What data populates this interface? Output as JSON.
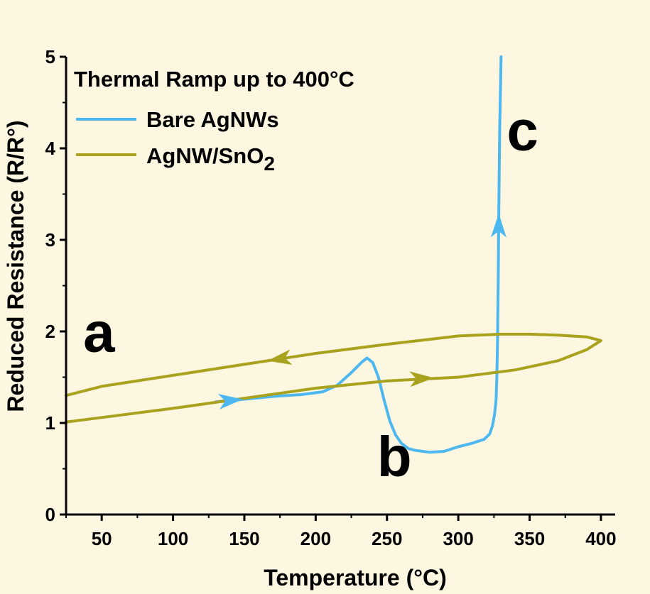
{
  "chart_data": {
    "type": "line",
    "title": "",
    "xlabel": "Temperature (°C)",
    "ylabel": "Reduced Resistance (R/R°)",
    "xlim": [
      25,
      410
    ],
    "ylim": [
      0,
      5
    ],
    "xticks": [
      "50",
      "100",
      "150",
      "200",
      "250",
      "300",
      "350",
      "400"
    ],
    "yticks": [
      "0",
      "1",
      "2",
      "3",
      "4",
      "5"
    ],
    "grid": false,
    "legend": {
      "placement": "top-left",
      "title": "Thermal Ramp up to 400°C"
    },
    "annotations": [
      {
        "text": "a",
        "x": 37,
        "y": 1.78
      },
      {
        "text": "b",
        "x": 243,
        "y": 0.42
      },
      {
        "text": "c",
        "x": 334,
        "y": 3.98
      }
    ],
    "series": [
      {
        "name": "Bare AgNWs",
        "name_main": "Bare AgNWs",
        "name_sub": "",
        "color": "#4db8f0",
        "x": [
          130,
          150,
          170,
          190,
          205,
          215,
          225,
          232,
          236,
          240,
          244,
          248,
          252,
          256,
          260,
          265,
          270,
          280,
          290,
          300,
          310,
          318,
          322,
          324,
          325.5,
          326.5,
          327,
          327.5,
          328,
          328.3,
          329,
          330
        ],
        "y": [
          1.23,
          1.26,
          1.29,
          1.31,
          1.34,
          1.41,
          1.55,
          1.66,
          1.71,
          1.66,
          1.5,
          1.25,
          1.02,
          0.87,
          0.78,
          0.72,
          0.7,
          0.68,
          0.69,
          0.74,
          0.78,
          0.82,
          0.88,
          0.97,
          1.1,
          1.25,
          1.5,
          1.9,
          2.6,
          3.2,
          4.2,
          5.0
        ],
        "arrows": [
          {
            "x": 140,
            "y": 1.245
          },
          {
            "x": 328.3,
            "y": 3.15
          }
        ]
      },
      {
        "name": "AgNW/SnO2",
        "name_main": "AgNW/SnO",
        "name_sub": "2",
        "color": "#a8a21e",
        "x": [
          25,
          50,
          100,
          150,
          200,
          250,
          300,
          340,
          370,
          390,
          400,
          390,
          370,
          350,
          330,
          300,
          250,
          200,
          150,
          100,
          50,
          25
        ],
        "y": [
          1.01,
          1.06,
          1.16,
          1.27,
          1.38,
          1.46,
          1.5,
          1.58,
          1.68,
          1.8,
          1.9,
          1.94,
          1.96,
          1.97,
          1.97,
          1.95,
          1.86,
          1.76,
          1.64,
          1.52,
          1.4,
          1.3
        ],
        "arrows": [
          {
            "x": 175,
            "y": 1.7
          },
          {
            "x": 274,
            "y": 1.485
          }
        ]
      }
    ]
  }
}
